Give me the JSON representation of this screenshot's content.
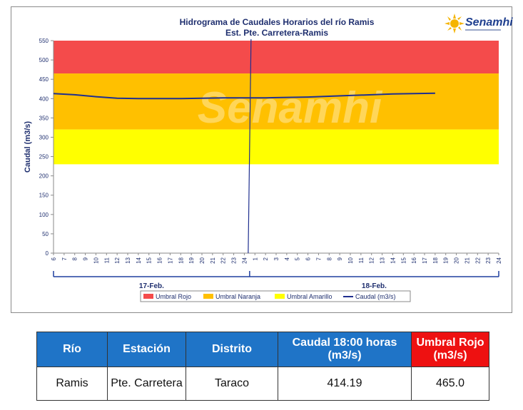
{
  "chart_data": {
    "type": "line",
    "title": "Hidrograma de Caudales Horarios del río Ramis",
    "subtitle": "Est. Pte. Carretera-Ramis",
    "ylabel": "Caudal  (m3/s)",
    "ylim": [
      0,
      550
    ],
    "yticks": [
      0,
      50,
      100,
      150,
      200,
      250,
      300,
      350,
      400,
      450,
      500,
      550
    ],
    "x_hour_labels": [
      "6",
      "7",
      "8",
      "9",
      "10",
      "11",
      "12",
      "13",
      "14",
      "15",
      "16",
      "17",
      "18",
      "19",
      "20",
      "21",
      "22",
      "23",
      "24",
      "1",
      "2",
      "3",
      "4",
      "5",
      "6",
      "7",
      "8",
      "9",
      "10",
      "11",
      "12",
      "13",
      "14",
      "15",
      "16",
      "17",
      "18",
      "19",
      "20",
      "21",
      "22",
      "23",
      "24"
    ],
    "day_labels": [
      "17-Feb.",
      "18-Feb."
    ],
    "bands": [
      {
        "name": "Umbral Rojo",
        "from": 465,
        "to": 550,
        "color": "#f44b4b"
      },
      {
        "name": "Umbral Naranja",
        "from": 320,
        "to": 465,
        "color": "#ffc000"
      },
      {
        "name": "Umbral Amarillo",
        "from": 230,
        "to": 320,
        "color": "#ffff00"
      }
    ],
    "series": [
      {
        "name": "Caudal (m3/s)",
        "color": "#1f2f8f",
        "x": [
          0,
          2,
          4,
          6,
          8,
          10,
          12,
          14,
          16,
          18,
          20,
          22,
          24,
          26,
          28,
          30,
          32,
          34,
          36
        ],
        "values": [
          413,
          410,
          405,
          401,
          400,
          400,
          400,
          401,
          402,
          402,
          402,
          403,
          404,
          406,
          408,
          410,
          412,
          413,
          414
        ]
      }
    ],
    "legend": [
      "Umbral Rojo",
      "Umbral Naranja",
      "Umbral Amarillo",
      "Caudal (m3/s)"
    ],
    "grid": false,
    "legend_position": "bottom",
    "watermark": "Senamhi"
  },
  "logo": {
    "name": "Senamhi"
  },
  "table": {
    "headers": [
      "Río",
      "Estación",
      "Distrito",
      "Caudal  18:00 horas (m3/s)",
      "Umbral Rojo (m3/s)"
    ],
    "row": [
      "Ramis",
      "Pte. Carretera",
      "Taraco",
      "414.19",
      "465.0"
    ]
  }
}
